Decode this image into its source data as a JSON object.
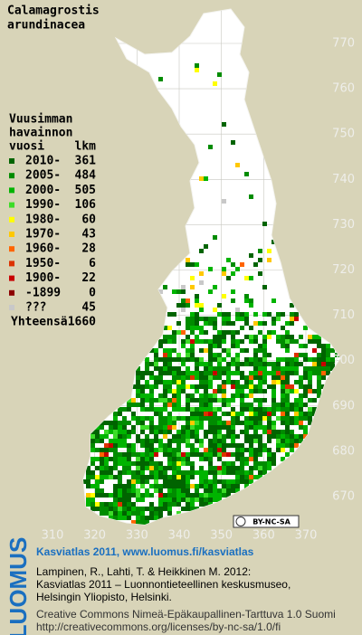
{
  "title": [
    "Calamagrostis",
    "arundinacea"
  ],
  "legend": {
    "header": [
      "Vuusimman",
      "havainnon",
      "vuosi"
    ],
    "count_header": "lkm",
    "rows": [
      {
        "label": "2010-",
        "count": 361,
        "color": "#006400"
      },
      {
        "label": "2005-",
        "count": 484,
        "color": "#008c00"
      },
      {
        "label": "2000-",
        "count": 505,
        "color": "#00b400"
      },
      {
        "label": "1990-",
        "count": 106,
        "color": "#3cdc28"
      },
      {
        "label": "1980-",
        "count": 60,
        "color": "#ffff00"
      },
      {
        "label": "1970-",
        "count": 43,
        "color": "#ffc800"
      },
      {
        "label": "1960-",
        "count": 28,
        "color": "#ff6400"
      },
      {
        "label": "1950-",
        "count": 6,
        "color": "#dc3200"
      },
      {
        "label": "1900-",
        "count": 22,
        "color": "#c80000"
      },
      {
        "label": "-1899",
        "count": 0,
        "color": "#8c0000"
      },
      {
        "label": "???",
        "count": 45,
        "color": "#c8c8c8"
      }
    ],
    "total_label": "Yhteensä",
    "total": 1660
  },
  "map": {
    "xticks": [
      310,
      320,
      330,
      340,
      350,
      360,
      370
    ],
    "yticks": [
      770,
      760,
      750,
      740,
      730,
      720,
      710,
      700,
      690,
      680,
      670
    ]
  },
  "cc_badge": "BY-NC-SA",
  "footer": {
    "logo": "LUOMUS",
    "headline": "Kasviatlas 2011, www.luomus.fi/kasviatlas",
    "citation": [
      "Lampinen, R., Lahti, T. & Heikkinen M. 2012:",
      "Kasviatlas 2011 – Luonnontieteellinen keskusmuseo,",
      "Helsingin Yliopisto, Helsinki."
    ],
    "license": [
      "Creative Commons Nimeä-Epäkaupallinen-Tarttuva 1.0 Suomi",
      "http://creativecommons.org/licenses/by-nc-sa/1.0/fi"
    ]
  }
}
